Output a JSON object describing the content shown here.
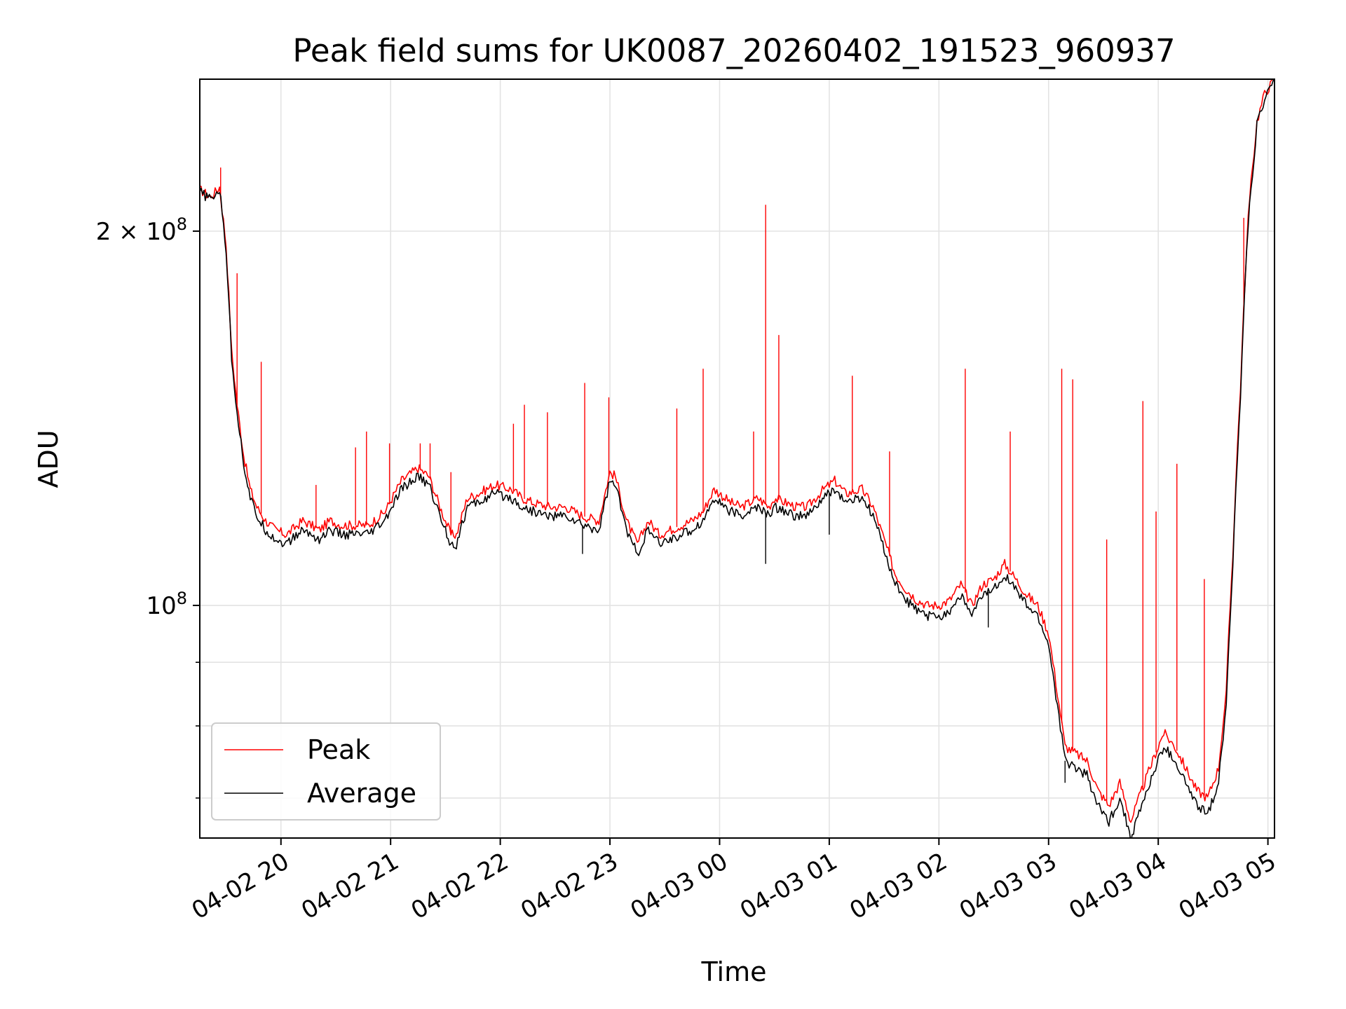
{
  "chart_data": {
    "type": "line",
    "title": "Peak field sums for UK0087_20260402_191523_960937",
    "xlabel": "Time",
    "ylabel": "ADU",
    "y_scale": "log",
    "ylim": [
      65000000,
      265000000
    ],
    "xlim_hours": [
      19.26,
      29.06
    ],
    "grid": true,
    "legend_position": "lower-left",
    "x_ticks": [
      {
        "hour": 20,
        "label": "04-02 20"
      },
      {
        "hour": 21,
        "label": "04-02 21"
      },
      {
        "hour": 22,
        "label": "04-02 22"
      },
      {
        "hour": 23,
        "label": "04-02 23"
      },
      {
        "hour": 24,
        "label": "04-03 00"
      },
      {
        "hour": 25,
        "label": "04-03 01"
      },
      {
        "hour": 26,
        "label": "04-03 02"
      },
      {
        "hour": 27,
        "label": "04-03 03"
      },
      {
        "hour": 28,
        "label": "04-03 04"
      },
      {
        "hour": 29,
        "label": "04-03 05"
      }
    ],
    "y_major_ticks": [
      {
        "value": 100000000,
        "base": "10",
        "exp": "8",
        "mantissa": ""
      },
      {
        "value": 200000000,
        "base": "10",
        "exp": "8",
        "mantissa": "2 × "
      }
    ],
    "y_minor_ticks": [
      70000000,
      80000000,
      90000000
    ],
    "series": [
      {
        "name": "Peak",
        "color": "#ff0000",
        "x_hours": [
          19.26,
          19.36,
          19.44,
          19.5,
          19.55,
          19.6,
          19.66,
          19.72,
          19.78,
          19.86,
          19.95,
          20.05,
          20.2,
          20.35,
          20.45,
          20.55,
          20.65,
          20.8,
          20.95,
          21.1,
          21.25,
          21.35,
          21.45,
          21.55,
          21.6,
          21.7,
          21.8,
          21.95,
          22.1,
          22.2,
          22.3,
          22.45,
          22.6,
          22.75,
          22.9,
          23.0,
          23.05,
          23.15,
          23.25,
          23.35,
          23.45,
          23.55,
          23.65,
          23.75,
          23.85,
          23.95,
          24.1,
          24.2,
          24.35,
          24.45,
          24.5,
          24.6,
          24.7,
          24.8,
          24.95,
          25.05,
          25.15,
          25.3,
          25.4,
          25.5,
          25.6,
          25.7,
          25.8,
          25.9,
          26.0,
          26.1,
          26.2,
          26.3,
          26.4,
          26.5,
          26.6,
          26.7,
          26.8,
          26.9,
          27.0,
          27.08,
          27.15,
          27.25,
          27.35,
          27.45,
          27.55,
          27.65,
          27.75,
          27.85,
          27.95,
          28.05,
          28.15,
          28.25,
          28.35,
          28.45,
          28.55,
          28.62,
          28.68,
          28.75,
          28.82,
          28.9,
          28.97,
          29.06
        ],
        "values": [
          216000000,
          213000000,
          217000000,
          195000000,
          160000000,
          145000000,
          132000000,
          124000000,
          120000000,
          117000000,
          115000000,
          114000000,
          117000000,
          115000000,
          117000000,
          116000000,
          116000000,
          116000000,
          119000000,
          126000000,
          129000000,
          127000000,
          120000000,
          114000000,
          114000000,
          122000000,
          123000000,
          125000000,
          124000000,
          122000000,
          121000000,
          120000000,
          120000000,
          118000000,
          117000000,
          128000000,
          127000000,
          117000000,
          112000000,
          117000000,
          114000000,
          115000000,
          116000000,
          117000000,
          119000000,
          124000000,
          121000000,
          120000000,
          122000000,
          120000000,
          122000000,
          121000000,
          120000000,
          120000000,
          124000000,
          126000000,
          123000000,
          124000000,
          120000000,
          113000000,
          106000000,
          103000000,
          101000000,
          100000000,
          100000000,
          101000000,
          104000000,
          100000000,
          104000000,
          105000000,
          108000000,
          105000000,
          102000000,
          100000000,
          95000000,
          85000000,
          77000000,
          76000000,
          75000000,
          71000000,
          69000000,
          72000000,
          67000000,
          71000000,
          75000000,
          79000000,
          77000000,
          74000000,
          71000000,
          70000000,
          74000000,
          85000000,
          110000000,
          150000000,
          205000000,
          245000000,
          258000000,
          265000000
        ],
        "spikes": [
          {
            "x_hours": 19.45,
            "value": 225000000
          },
          {
            "x_hours": 19.6,
            "value": 185000000
          },
          {
            "x_hours": 19.82,
            "value": 157000000
          },
          {
            "x_hours": 20.32,
            "value": 125000000
          },
          {
            "x_hours": 20.68,
            "value": 134000000
          },
          {
            "x_hours": 20.78,
            "value": 138000000
          },
          {
            "x_hours": 20.99,
            "value": 135000000
          },
          {
            "x_hours": 21.27,
            "value": 135000000
          },
          {
            "x_hours": 21.36,
            "value": 135000000
          },
          {
            "x_hours": 21.55,
            "value": 128000000
          },
          {
            "x_hours": 22.12,
            "value": 140000000
          },
          {
            "x_hours": 22.22,
            "value": 145000000
          },
          {
            "x_hours": 22.43,
            "value": 143000000
          },
          {
            "x_hours": 22.77,
            "value": 151000000
          },
          {
            "x_hours": 22.99,
            "value": 147000000
          },
          {
            "x_hours": 23.61,
            "value": 144000000
          },
          {
            "x_hours": 23.85,
            "value": 155000000
          },
          {
            "x_hours": 24.31,
            "value": 138000000
          },
          {
            "x_hours": 24.42,
            "value": 210000000
          },
          {
            "x_hours": 24.54,
            "value": 165000000
          },
          {
            "x_hours": 25.21,
            "value": 153000000
          },
          {
            "x_hours": 25.55,
            "value": 133000000
          },
          {
            "x_hours": 26.24,
            "value": 155000000
          },
          {
            "x_hours": 26.65,
            "value": 138000000
          },
          {
            "x_hours": 27.12,
            "value": 155000000
          },
          {
            "x_hours": 27.22,
            "value": 152000000
          },
          {
            "x_hours": 27.53,
            "value": 113000000
          },
          {
            "x_hours": 27.86,
            "value": 146000000
          },
          {
            "x_hours": 27.98,
            "value": 119000000
          },
          {
            "x_hours": 28.17,
            "value": 130000000
          },
          {
            "x_hours": 28.42,
            "value": 105000000
          },
          {
            "x_hours": 28.78,
            "value": 205000000
          }
        ]
      },
      {
        "name": "Average",
        "color": "#000000",
        "x_hours": [
          19.26,
          19.36,
          19.44,
          19.5,
          19.55,
          19.6,
          19.66,
          19.72,
          19.78,
          19.86,
          19.95,
          20.05,
          20.2,
          20.35,
          20.45,
          20.55,
          20.65,
          20.8,
          20.95,
          21.1,
          21.25,
          21.35,
          21.45,
          21.55,
          21.6,
          21.7,
          21.8,
          21.95,
          22.1,
          22.2,
          22.3,
          22.45,
          22.6,
          22.75,
          22.9,
          23.0,
          23.05,
          23.15,
          23.25,
          23.35,
          23.45,
          23.55,
          23.65,
          23.75,
          23.85,
          23.95,
          24.1,
          24.2,
          24.35,
          24.45,
          24.5,
          24.6,
          24.7,
          24.8,
          24.95,
          25.05,
          25.15,
          25.3,
          25.4,
          25.5,
          25.6,
          25.7,
          25.8,
          25.9,
          26.0,
          26.1,
          26.2,
          26.3,
          26.4,
          26.5,
          26.6,
          26.7,
          26.8,
          26.9,
          27.0,
          27.08,
          27.15,
          27.25,
          27.35,
          27.45,
          27.55,
          27.65,
          27.75,
          27.85,
          27.95,
          28.05,
          28.15,
          28.25,
          28.35,
          28.45,
          28.55,
          28.62,
          28.68,
          28.75,
          28.82,
          28.9,
          28.97,
          29.06
        ],
        "values": [
          215000000,
          212000000,
          216000000,
          193000000,
          158000000,
          143000000,
          130000000,
          122000000,
          118000000,
          115000000,
          113000000,
          112000000,
          115000000,
          113000000,
          115000000,
          114000000,
          114000000,
          114000000,
          117000000,
          124000000,
          127000000,
          125000000,
          118000000,
          112000000,
          112000000,
          120000000,
          121000000,
          123000000,
          122000000,
          120000000,
          119000000,
          118000000,
          118000000,
          116000000,
          115000000,
          126000000,
          125000000,
          115000000,
          110000000,
          115000000,
          112000000,
          113000000,
          114000000,
          115000000,
          117000000,
          122000000,
          119000000,
          118000000,
          120000000,
          118000000,
          120000000,
          119000000,
          118000000,
          118000000,
          122000000,
          124000000,
          121000000,
          122000000,
          118000000,
          111000000,
          104000000,
          101000000,
          99000000,
          98000000,
          98000000,
          99000000,
          102000000,
          98000000,
          102000000,
          103000000,
          106000000,
          103000000,
          100000000,
          98000000,
          93000000,
          83000000,
          75000000,
          74000000,
          73000000,
          69000000,
          67000000,
          70000000,
          65000000,
          69000000,
          73000000,
          77000000,
          75000000,
          72000000,
          69000000,
          68000000,
          72000000,
          83000000,
          108000000,
          148000000,
          203000000,
          243000000,
          256000000,
          265000000
        ],
        "spikes": [
          {
            "x_hours": 22.75,
            "value": 110000000
          },
          {
            "x_hours": 24.42,
            "value": 108000000
          },
          {
            "x_hours": 25.0,
            "value": 114000000
          },
          {
            "x_hours": 26.45,
            "value": 96000000
          },
          {
            "x_hours": 27.15,
            "value": 72000000
          }
        ]
      }
    ]
  }
}
